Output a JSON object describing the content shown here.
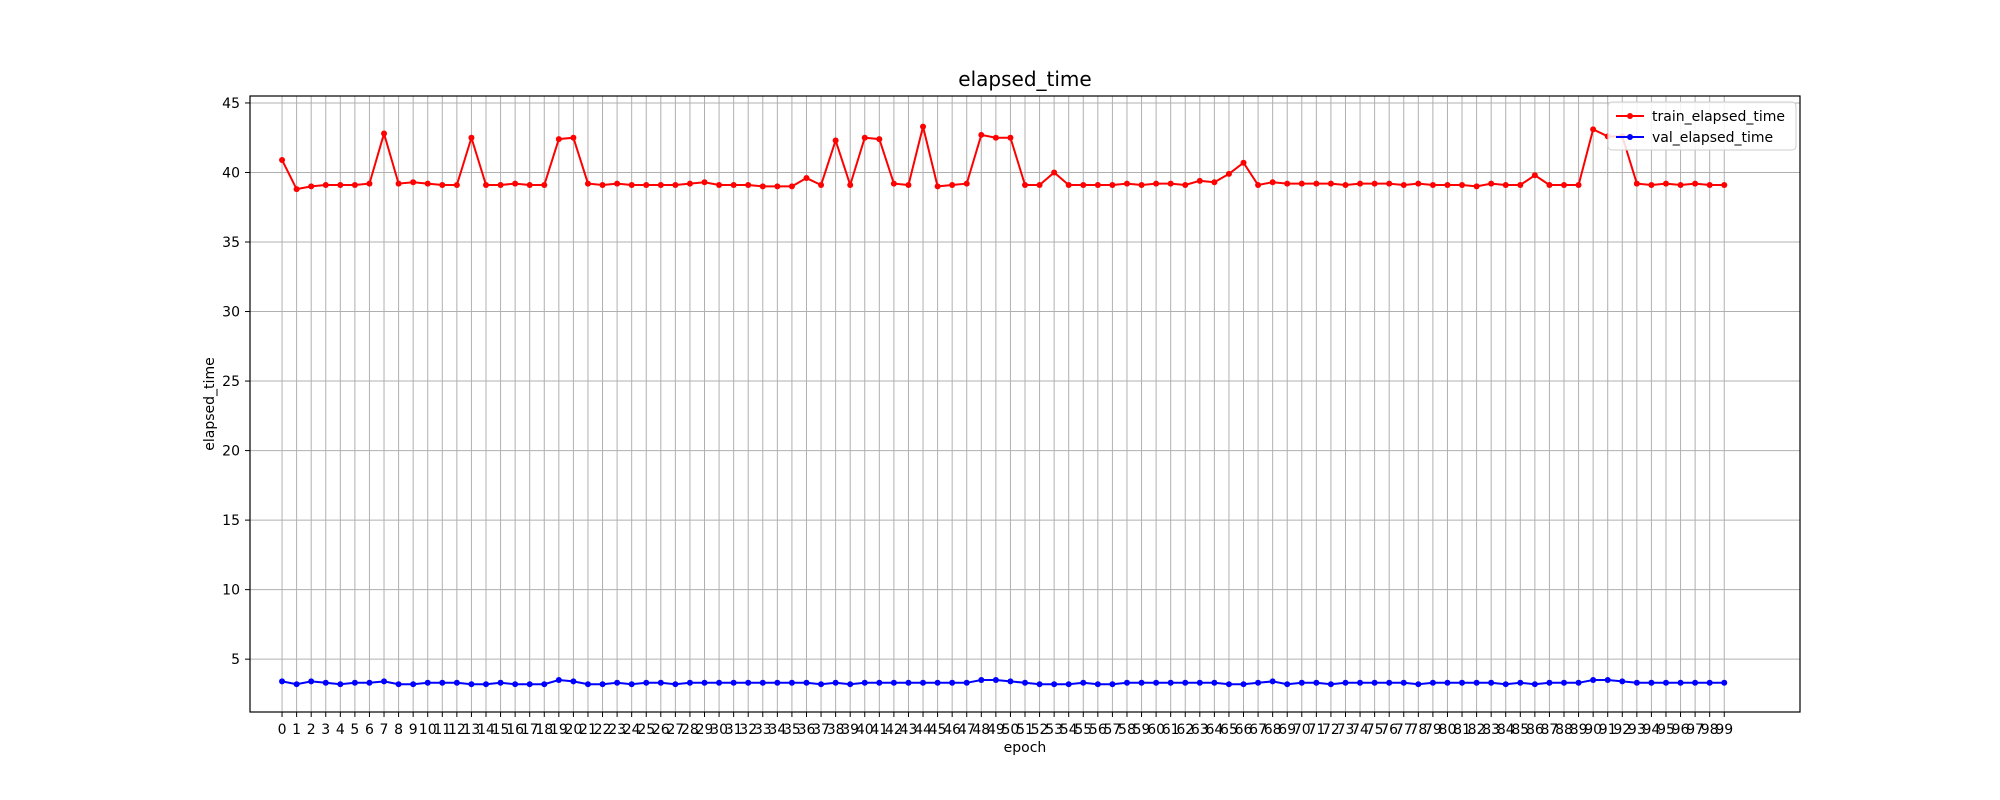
{
  "chart_data": {
    "type": "line",
    "title": "elapsed_time",
    "xlabel": "epoch",
    "ylabel": "elapsed_time",
    "xlim": [
      -2.2,
      104.2
    ],
    "ylim": [
      1.2,
      45.5
    ],
    "yticks": [
      5,
      10,
      15,
      20,
      25,
      30,
      35,
      40,
      45
    ],
    "grid": true,
    "legend_position": "top-right",
    "x": [
      0,
      1,
      2,
      3,
      4,
      5,
      6,
      7,
      8,
      9,
      10,
      11,
      12,
      13,
      14,
      15,
      16,
      17,
      18,
      19,
      20,
      21,
      22,
      23,
      24,
      25,
      26,
      27,
      28,
      29,
      30,
      31,
      32,
      33,
      34,
      35,
      36,
      37,
      38,
      39,
      40,
      41,
      42,
      43,
      44,
      45,
      46,
      47,
      48,
      49,
      50,
      51,
      52,
      53,
      54,
      55,
      56,
      57,
      58,
      59,
      60,
      61,
      62,
      63,
      64,
      65,
      66,
      67,
      68,
      69,
      70,
      71,
      72,
      73,
      74,
      75,
      76,
      77,
      78,
      79,
      80,
      81,
      82,
      83,
      84,
      85,
      86,
      87,
      88,
      89,
      90,
      91,
      92,
      93,
      94,
      95,
      96,
      97,
      98,
      99
    ],
    "series": [
      {
        "name": "train_elapsed_time",
        "color": "#ff0000",
        "values": [
          40.9,
          38.8,
          39.0,
          39.1,
          39.1,
          39.1,
          39.2,
          42.8,
          39.2,
          39.3,
          39.2,
          39.1,
          39.1,
          42.5,
          39.1,
          39.1,
          39.2,
          39.1,
          39.1,
          42.4,
          42.5,
          39.2,
          39.1,
          39.2,
          39.1,
          39.1,
          39.1,
          39.1,
          39.2,
          39.3,
          39.1,
          39.1,
          39.1,
          39.0,
          39.0,
          39.0,
          39.6,
          39.1,
          42.3,
          39.1,
          42.5,
          42.4,
          39.2,
          39.1,
          43.3,
          39.0,
          39.1,
          39.2,
          42.7,
          42.5,
          42.5,
          39.1,
          39.1,
          40.0,
          39.1,
          39.1,
          39.1,
          39.1,
          39.2,
          39.1,
          39.2,
          39.2,
          39.1,
          39.4,
          39.3,
          39.9,
          40.7,
          39.1,
          39.3,
          39.2,
          39.2,
          39.2,
          39.2,
          39.1,
          39.2,
          39.2,
          39.2,
          39.1,
          39.2,
          39.1,
          39.1,
          39.1,
          39.0,
          39.2,
          39.1,
          39.1,
          39.8,
          39.1,
          39.1,
          39.1,
          43.1,
          42.6,
          42.6,
          39.2,
          39.1,
          39.2,
          39.1,
          39.2,
          39.1,
          39.1
        ]
      },
      {
        "name": "val_elapsed_time",
        "color": "#0000ff",
        "values": [
          3.4,
          3.2,
          3.4,
          3.3,
          3.2,
          3.3,
          3.3,
          3.4,
          3.2,
          3.2,
          3.3,
          3.3,
          3.3,
          3.2,
          3.2,
          3.3,
          3.2,
          3.2,
          3.2,
          3.5,
          3.4,
          3.2,
          3.2,
          3.3,
          3.2,
          3.3,
          3.3,
          3.2,
          3.3,
          3.3,
          3.3,
          3.3,
          3.3,
          3.3,
          3.3,
          3.3,
          3.3,
          3.2,
          3.3,
          3.2,
          3.3,
          3.3,
          3.3,
          3.3,
          3.3,
          3.3,
          3.3,
          3.3,
          3.5,
          3.5,
          3.4,
          3.3,
          3.2,
          3.2,
          3.2,
          3.3,
          3.2,
          3.2,
          3.3,
          3.3,
          3.3,
          3.3,
          3.3,
          3.3,
          3.3,
          3.2,
          3.2,
          3.3,
          3.4,
          3.2,
          3.3,
          3.3,
          3.2,
          3.3,
          3.3,
          3.3,
          3.3,
          3.3,
          3.2,
          3.3,
          3.3,
          3.3,
          3.3,
          3.3,
          3.2,
          3.3,
          3.2,
          3.3,
          3.3,
          3.3,
          3.5,
          3.5,
          3.4,
          3.3,
          3.3,
          3.3,
          3.3,
          3.3,
          3.3,
          3.3
        ]
      }
    ]
  }
}
